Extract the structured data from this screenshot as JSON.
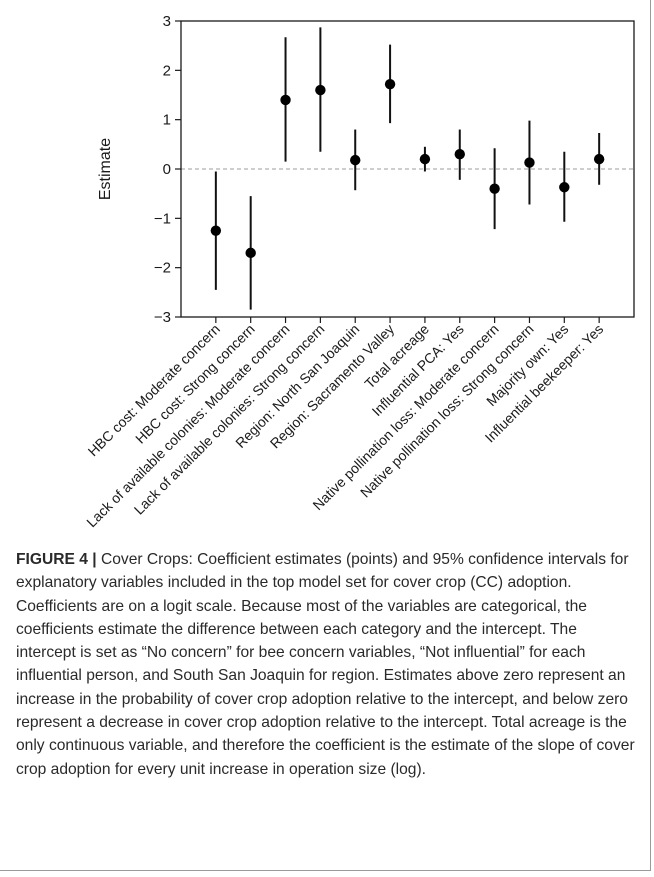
{
  "chart_data": {
    "type": "scatter",
    "subtype": "point-range (coefficient estimates with 95% CI)",
    "ylabel": "Estimate",
    "ylim": [
      -3,
      3
    ],
    "yticks": [
      -3,
      -2,
      -1,
      0,
      1,
      2,
      3
    ],
    "reference_line": 0,
    "grid": false,
    "categories": [
      "HBC cost: Moderate concern",
      "HBC cost: Strong concern",
      "Lack of available colonies: Moderate concern",
      "Lack of available colonies: Strong concern",
      "Region: North San Joaquin",
      "Region: Sacramento Valley",
      "Total acreage",
      "Influential PCA: Yes",
      "Native pollination loss: Moderate concern",
      "Native pollination loss: Strong concern",
      "Majority own: Yes",
      "Influential beekeeper: Yes"
    ],
    "estimates": [
      -1.25,
      -1.7,
      1.4,
      1.6,
      0.18,
      1.72,
      0.2,
      0.3,
      -0.4,
      0.13,
      -0.37,
      0.2
    ],
    "ci_lower": [
      -2.45,
      -2.85,
      0.15,
      0.35,
      -0.43,
      0.93,
      -0.05,
      -0.22,
      -1.22,
      -0.72,
      -1.07,
      -0.32
    ],
    "ci_upper": [
      -0.05,
      -0.55,
      2.67,
      2.87,
      0.8,
      2.52,
      0.45,
      0.8,
      0.42,
      0.98,
      0.35,
      0.73
    ]
  },
  "caption": {
    "label": "FIGURE 4 |",
    "text": "Cover Crops: Coefficient estimates (points) and 95% confidence intervals for explanatory variables included in the top model set for cover crop (CC) adoption. Coefficients are on a logit scale. Because most of the variables are categorical, the coefficients estimate the difference between each category and the intercept. The intercept is set as “No concern” for bee concern variables, “Not influential” for each influential person, and South San Joaquin for region. Estimates above zero represent an increase in the probability of cover crop adoption relative to the intercept, and below zero represent a decrease in cover crop adoption relative to the intercept. Total acreage is the only continuous variable, and therefore the coefficient is the estimate of the slope of cover crop adoption for every unit increase in operation size (log)."
  }
}
